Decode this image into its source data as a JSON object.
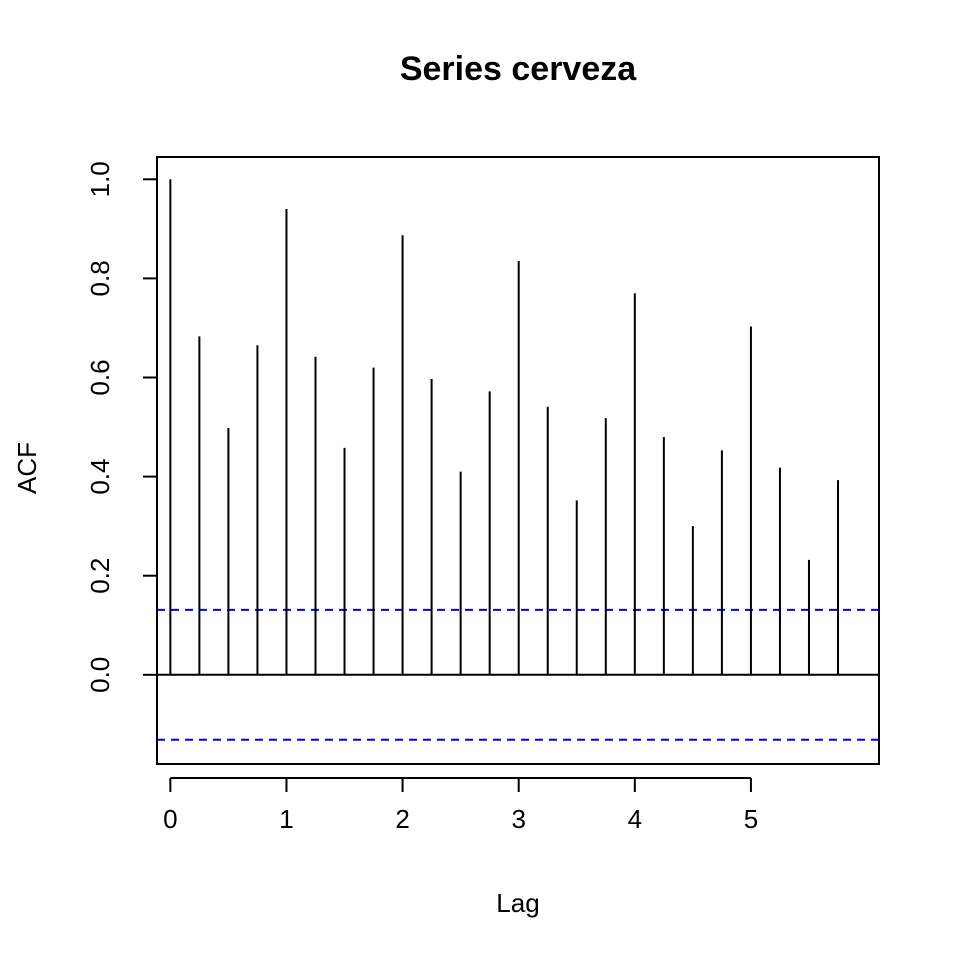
{
  "chart_data": {
    "type": "bar",
    "title": "Series  cerveza",
    "xlabel": "Lag",
    "ylabel": "ACF",
    "x": [
      0,
      0.25,
      0.5,
      0.75,
      1,
      1.25,
      1.5,
      1.75,
      2,
      2.25,
      2.5,
      2.75,
      3,
      3.25,
      3.5,
      3.75,
      4,
      4.25,
      4.5,
      4.75,
      5,
      5.25,
      5.5,
      5.75
    ],
    "values": [
      1.0,
      0.683,
      0.498,
      0.665,
      0.94,
      0.642,
      0.458,
      0.62,
      0.887,
      0.597,
      0.41,
      0.572,
      0.835,
      0.541,
      0.352,
      0.518,
      0.77,
      0.48,
      0.3,
      0.453,
      0.703,
      0.418,
      0.232,
      0.393
    ],
    "xlim": [
      -0.115,
      6.103
    ],
    "ylim": [
      -0.18,
      1.045
    ],
    "xticks": [
      0,
      1,
      2,
      3,
      4,
      5
    ],
    "xtick_labels": [
      "0",
      "1",
      "2",
      "3",
      "4",
      "5"
    ],
    "yticks": [
      0.0,
      0.2,
      0.4,
      0.6,
      0.8,
      1.0
    ],
    "ytick_labels": [
      "0.0",
      "0.2",
      "0.4",
      "0.6",
      "0.8",
      "1.0"
    ],
    "confidence_bounds": [
      0.131,
      -0.131
    ],
    "zero_line": 0,
    "colors": {
      "bars": "#000000",
      "confidence": "#0000ff",
      "frame": "#000000"
    },
    "grid": false,
    "legend": "none"
  }
}
